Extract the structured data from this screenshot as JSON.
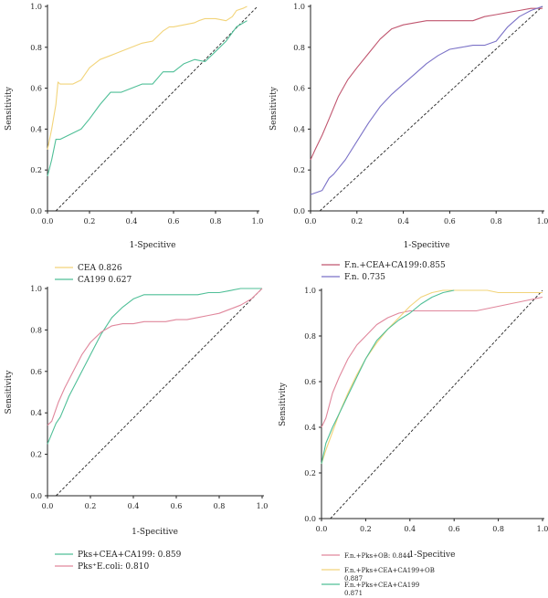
{
  "chart_data": [
    {
      "type": "line",
      "xlabel": "1-Specitive",
      "ylabel": "Sensitivity",
      "xlim": [
        0,
        1
      ],
      "ylim": [
        0,
        1
      ],
      "xticks": [
        "0.0",
        "0.2",
        "0.4",
        "0.6",
        "0.8",
        "1.0"
      ],
      "yticks": [
        "0.0",
        "0.2",
        "0.4",
        "0.6",
        "0.8",
        "1.0"
      ],
      "reference_line": "diagonal-dashed",
      "legend": [
        "CEA 0.826",
        "CA199 0.627"
      ],
      "series": [
        {
          "name": "CEA 0.826",
          "color": "#f2d47a",
          "x": [
            0.0,
            0.02,
            0.04,
            0.05,
            0.06,
            0.08,
            0.12,
            0.16,
            0.2,
            0.25,
            0.3,
            0.35,
            0.4,
            0.45,
            0.5,
            0.52,
            0.55,
            0.58,
            0.6,
            0.65,
            0.7,
            0.72,
            0.75,
            0.8,
            0.85,
            0.88,
            0.9,
            0.93,
            0.95
          ],
          "y": [
            0.3,
            0.4,
            0.52,
            0.63,
            0.62,
            0.62,
            0.62,
            0.64,
            0.7,
            0.74,
            0.76,
            0.78,
            0.8,
            0.82,
            0.83,
            0.85,
            0.88,
            0.9,
            0.9,
            0.91,
            0.92,
            0.93,
            0.94,
            0.94,
            0.93,
            0.95,
            0.98,
            0.99,
            1.0
          ]
        },
        {
          "name": "CA199 0.627",
          "color": "#4fbf97",
          "x": [
            0.0,
            0.02,
            0.04,
            0.06,
            0.08,
            0.12,
            0.16,
            0.2,
            0.25,
            0.3,
            0.35,
            0.4,
            0.45,
            0.5,
            0.55,
            0.6,
            0.65,
            0.7,
            0.75,
            0.8,
            0.85,
            0.9,
            0.95
          ],
          "y": [
            0.17,
            0.25,
            0.35,
            0.35,
            0.36,
            0.38,
            0.4,
            0.45,
            0.52,
            0.58,
            0.58,
            0.6,
            0.62,
            0.62,
            0.68,
            0.68,
            0.72,
            0.74,
            0.73,
            0.78,
            0.83,
            0.9,
            0.93
          ]
        }
      ]
    },
    {
      "type": "line",
      "xlabel": "1-Specitive",
      "ylabel": "Sensitivity",
      "xlim": [
        0,
        1
      ],
      "ylim": [
        0,
        1
      ],
      "xticks": [
        "0.0",
        "0.2",
        "0.4",
        "0.6",
        "0.8",
        "1.0"
      ],
      "yticks": [
        "0.0",
        "0.2",
        "0.4",
        "0.6",
        "0.8",
        "1.0"
      ],
      "reference_line": "diagonal-dashed",
      "legend": [
        "F.n.+CEA+CA199:0.855",
        "F.n. 0.735"
      ],
      "series": [
        {
          "name": "F.n.+CEA+CA199:0.855",
          "color": "#c0566f",
          "x": [
            0.0,
            0.02,
            0.05,
            0.08,
            0.12,
            0.16,
            0.2,
            0.25,
            0.3,
            0.35,
            0.4,
            0.45,
            0.5,
            0.55,
            0.6,
            0.65,
            0.7,
            0.75,
            0.8,
            0.85,
            0.9,
            0.95,
            1.0
          ],
          "y": [
            0.25,
            0.3,
            0.37,
            0.45,
            0.56,
            0.64,
            0.7,
            0.77,
            0.84,
            0.89,
            0.91,
            0.92,
            0.93,
            0.93,
            0.93,
            0.93,
            0.93,
            0.95,
            0.96,
            0.97,
            0.98,
            0.99,
            0.99
          ]
        },
        {
          "name": "F.n. 0.735",
          "color": "#7b72c7",
          "x": [
            0.0,
            0.05,
            0.08,
            0.1,
            0.15,
            0.2,
            0.25,
            0.3,
            0.35,
            0.4,
            0.45,
            0.5,
            0.55,
            0.6,
            0.65,
            0.7,
            0.75,
            0.8,
            0.85,
            0.9,
            0.95,
            1.0
          ],
          "y": [
            0.08,
            0.1,
            0.16,
            0.18,
            0.25,
            0.34,
            0.43,
            0.51,
            0.57,
            0.62,
            0.67,
            0.72,
            0.76,
            0.79,
            0.8,
            0.81,
            0.81,
            0.83,
            0.9,
            0.95,
            0.98,
            1.0
          ]
        }
      ]
    },
    {
      "type": "line",
      "xlabel": "1-Specitive",
      "ylabel": "Sensitivity",
      "xlim": [
        0,
        1
      ],
      "ylim": [
        0,
        1
      ],
      "xticks": [
        "0.0",
        "0.2",
        "0.4",
        "0.6",
        "0.8",
        "1.0"
      ],
      "yticks": [
        "0.0",
        "0.2",
        "0.4",
        "0.6",
        "0.8",
        "1.0"
      ],
      "reference_line": "diagonal-dashed",
      "legend": [
        "Pks+CEA+CA199: 0.859",
        "Pks⁺E.coli: 0.810"
      ],
      "series": [
        {
          "name": "Pks+CEA+CA199: 0.859",
          "color": "#4fbf97",
          "x": [
            0.0,
            0.02,
            0.04,
            0.06,
            0.08,
            0.1,
            0.12,
            0.15,
            0.18,
            0.2,
            0.25,
            0.3,
            0.35,
            0.4,
            0.45,
            0.5,
            0.55,
            0.6,
            0.65,
            0.7,
            0.75,
            0.8,
            0.85,
            0.9,
            0.95,
            1.0
          ],
          "y": [
            0.25,
            0.3,
            0.35,
            0.38,
            0.43,
            0.48,
            0.52,
            0.58,
            0.64,
            0.68,
            0.78,
            0.86,
            0.91,
            0.95,
            0.97,
            0.97,
            0.97,
            0.97,
            0.97,
            0.97,
            0.98,
            0.98,
            0.99,
            1.0,
            1.0,
            1.0
          ]
        },
        {
          "name": "Pks⁺E.coli: 0.810",
          "color": "#e0879c",
          "x": [
            0.0,
            0.02,
            0.05,
            0.08,
            0.12,
            0.16,
            0.2,
            0.25,
            0.3,
            0.35,
            0.4,
            0.45,
            0.5,
            0.55,
            0.6,
            0.65,
            0.7,
            0.75,
            0.8,
            0.85,
            0.9,
            0.95,
            1.0
          ],
          "y": [
            0.34,
            0.36,
            0.45,
            0.52,
            0.6,
            0.68,
            0.74,
            0.79,
            0.82,
            0.83,
            0.83,
            0.84,
            0.84,
            0.84,
            0.85,
            0.85,
            0.86,
            0.87,
            0.88,
            0.9,
            0.92,
            0.95,
            1.0
          ]
        }
      ]
    },
    {
      "type": "line",
      "xlabel": "1-Specitive",
      "ylabel": "Sensitivity",
      "xlim": [
        0,
        1
      ],
      "ylim": [
        0,
        1
      ],
      "xticks": [
        "0.0",
        "0.2",
        "0.4",
        "0.6",
        "0.8",
        "1.0"
      ],
      "yticks": [
        "0.0",
        "0.2",
        "0.4",
        "0.6",
        "0.8",
        "1.0"
      ],
      "reference_line": "diagonal-dashed",
      "legend": [
        "F.n.+Pks+OB: 0.844",
        "F.n.+Pks+CEA+CA199+OB 0.887",
        "F.n.+Pks+CEA+CA199 0.871"
      ],
      "series": [
        {
          "name": "F.n.+Pks+OB: 0.844",
          "color": "#e0879c",
          "x": [
            0.0,
            0.02,
            0.05,
            0.08,
            0.12,
            0.16,
            0.2,
            0.25,
            0.3,
            0.35,
            0.4,
            0.45,
            0.5,
            0.55,
            0.6,
            0.65,
            0.7,
            0.75,
            0.8,
            0.85,
            0.9,
            0.95,
            1.0
          ],
          "y": [
            0.4,
            0.44,
            0.55,
            0.62,
            0.7,
            0.76,
            0.8,
            0.85,
            0.88,
            0.9,
            0.91,
            0.91,
            0.91,
            0.91,
            0.91,
            0.91,
            0.91,
            0.92,
            0.93,
            0.94,
            0.95,
            0.96,
            0.97
          ]
        },
        {
          "name": "F.n.+Pks+CEA+CA199+OB 0.887",
          "color": "#f2d47a",
          "x": [
            0.0,
            0.02,
            0.05,
            0.08,
            0.12,
            0.16,
            0.2,
            0.25,
            0.3,
            0.35,
            0.4,
            0.45,
            0.5,
            0.55,
            0.6,
            0.65,
            0.7,
            0.75,
            0.8,
            0.85,
            0.9,
            0.95,
            1.0
          ],
          "y": [
            0.24,
            0.3,
            0.38,
            0.46,
            0.55,
            0.63,
            0.7,
            0.77,
            0.83,
            0.88,
            0.93,
            0.97,
            0.99,
            1.0,
            1.0,
            1.0,
            1.0,
            1.0,
            0.99,
            0.99,
            0.99,
            0.99,
            0.99
          ]
        },
        {
          "name": "F.n.+Pks+CEA+CA199 0.871",
          "color": "#4fbf97",
          "x": [
            0.0,
            0.02,
            0.05,
            0.08,
            0.12,
            0.16,
            0.2,
            0.25,
            0.3,
            0.35,
            0.4,
            0.45,
            0.5,
            0.55,
            0.6
          ],
          "y": [
            0.24,
            0.33,
            0.4,
            0.46,
            0.54,
            0.62,
            0.7,
            0.78,
            0.83,
            0.87,
            0.9,
            0.94,
            0.97,
            0.99,
            1.0
          ]
        }
      ]
    }
  ]
}
